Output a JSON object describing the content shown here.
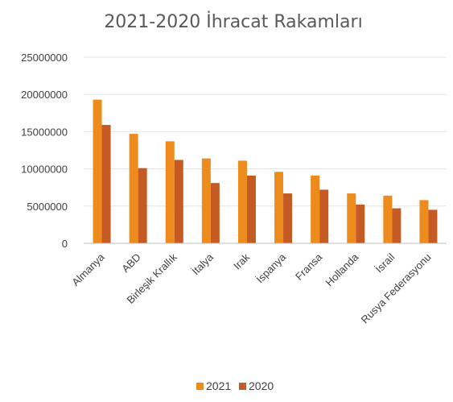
{
  "chart_data": {
    "type": "bar",
    "title": "2021-2020 İhracat Rakamları",
    "xlabel": "",
    "ylabel": "",
    "categories": [
      "Almanya",
      "ABD",
      "Birleşik Krallık",
      "İtalya",
      "Irak",
      "İspanya",
      "Fransa",
      "Hollanda",
      "İsrail",
      "Rusya Federasyonu"
    ],
    "series": [
      {
        "name": "2021",
        "color": "#ED8B1C",
        "values": [
          19300000,
          14700000,
          13700000,
          11400000,
          11100000,
          9600000,
          9100000,
          6700000,
          6400000,
          5800000
        ]
      },
      {
        "name": "2020",
        "color": "#C55A22",
        "values": [
          15900000,
          10100000,
          11200000,
          8100000,
          9100000,
          6700000,
          7200000,
          5200000,
          4700000,
          4500000
        ]
      }
    ],
    "ylim": [
      0,
      25000000
    ],
    "yticks": [
      "0",
      "5000000",
      "10000000",
      "15000000",
      "20000000",
      "25000000"
    ],
    "grid": true,
    "legend_position": "bottom"
  }
}
